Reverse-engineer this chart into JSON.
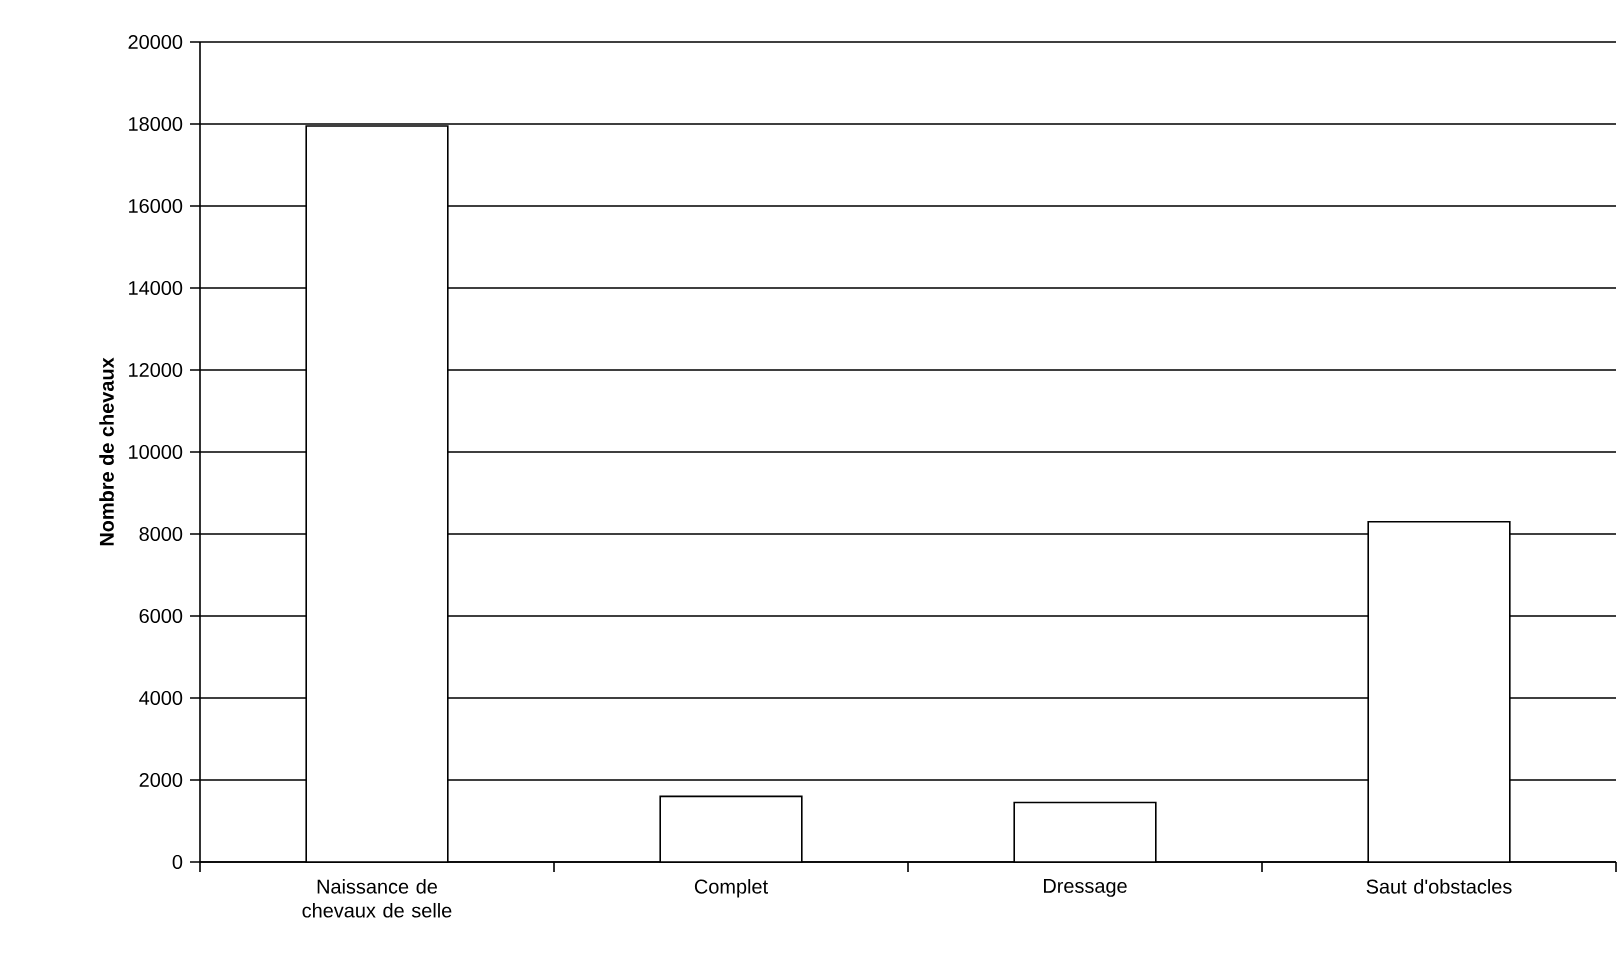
{
  "chart_data": {
    "type": "bar",
    "ylabel": "Nombre de chevaux",
    "categories": [
      "Naissance de chevaux de selle",
      "Complet",
      "Dressage",
      "Saut d'obstacles"
    ],
    "values": [
      17950,
      1600,
      1450,
      8300
    ],
    "color": "#ffffff",
    "ylim": [
      0,
      20000
    ],
    "yticks": [
      0,
      2000,
      4000,
      6000,
      8000,
      10000,
      12000,
      14000,
      16000,
      18000,
      20000
    ],
    "grid": "y"
  }
}
